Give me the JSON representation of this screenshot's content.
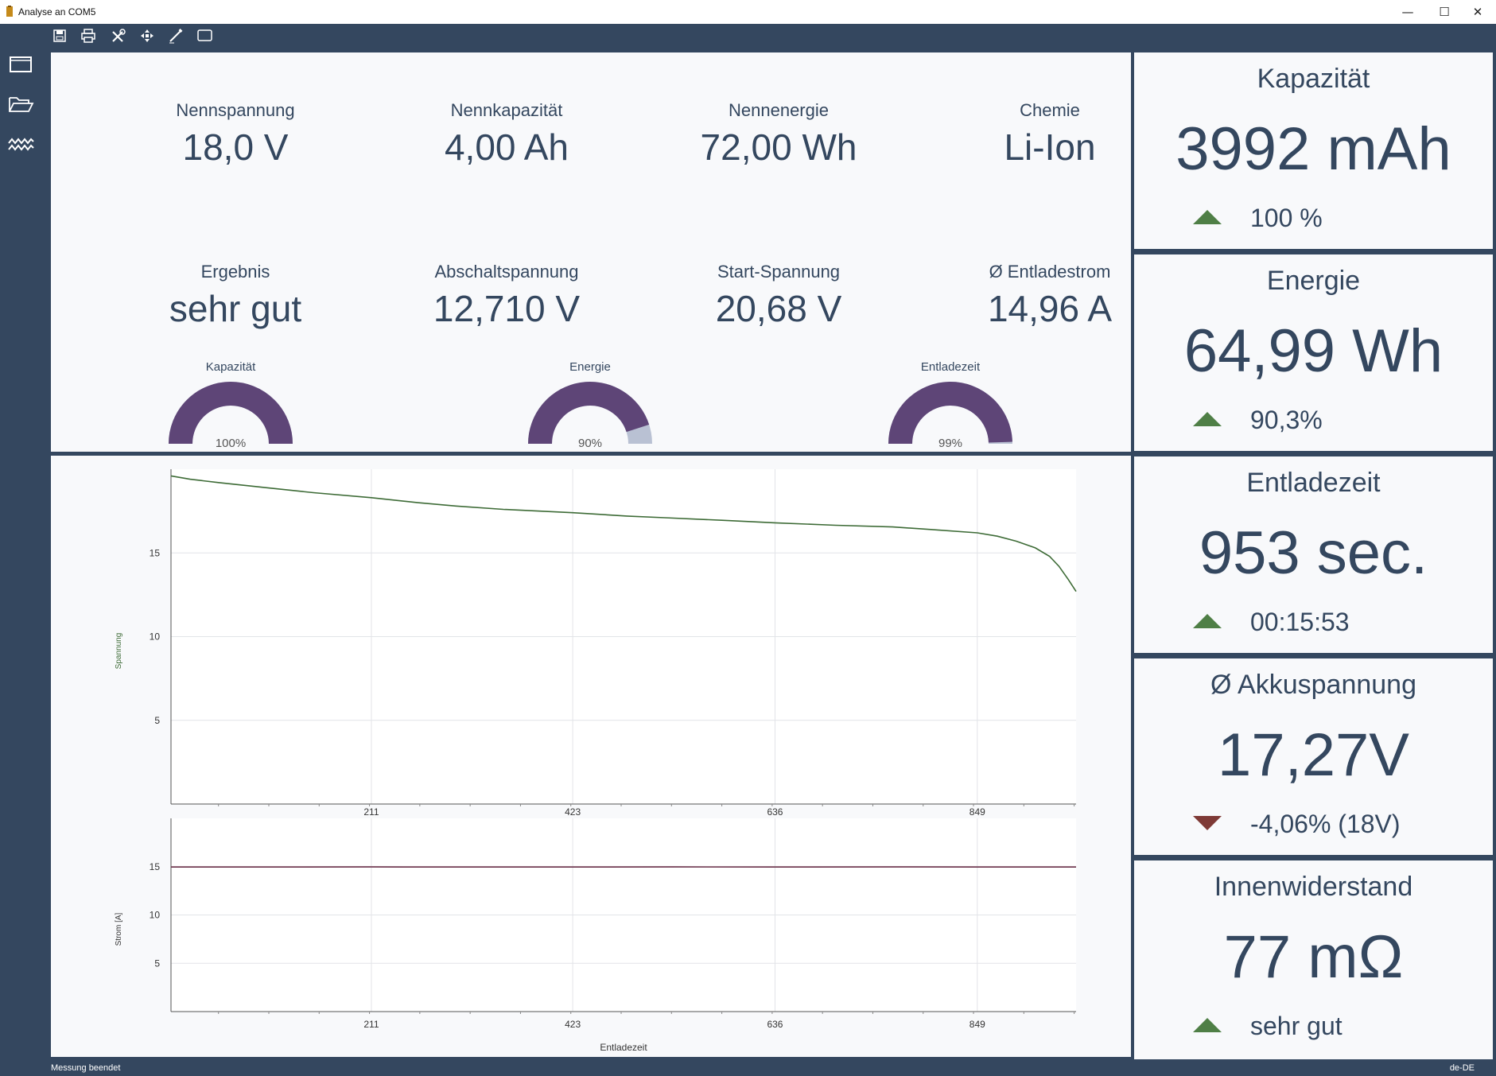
{
  "window": {
    "title": "Analyse an COM5",
    "minimize_glyph": "—",
    "maximize_glyph": "☐",
    "close_glyph": "✕"
  },
  "toolbar": {
    "icons": [
      "save-icon",
      "print-icon",
      "tools-icon",
      "move-icon",
      "pen-icon",
      "frame-icon"
    ]
  },
  "sidebar": {
    "icons": [
      "window-icon",
      "folder-open-icon",
      "waveform-icon"
    ]
  },
  "summary": {
    "nennspannung": {
      "label": "Nennspannung",
      "value": "18,0 V"
    },
    "nennkapazitaet": {
      "label": "Nennkapazität",
      "value": "4,00 Ah"
    },
    "nennenergie": {
      "label": "Nennenergie",
      "value": "72,00 Wh"
    },
    "chemie": {
      "label": "Chemie",
      "value": "Li-Ion"
    },
    "ergebnis": {
      "label": "Ergebnis",
      "value": "sehr gut"
    },
    "abschaltspannung": {
      "label": "Abschaltspannung",
      "value": "12,710 V"
    },
    "startspannung": {
      "label": "Start-Spannung",
      "value": "20,68 V"
    },
    "entladestrom": {
      "label": "Ø Entladestrom",
      "value": "14,96 A"
    }
  },
  "gauges": [
    {
      "label": "Kapazität",
      "percent_text": "100%",
      "fraction": 1.0
    },
    {
      "label": "Energie",
      "percent_text": "90%",
      "fraction": 0.9
    },
    {
      "label": "Entladezeit",
      "percent_text": "99%",
      "fraction": 0.99
    }
  ],
  "cards": [
    {
      "title": "Kapazität",
      "value": "3992 mAh",
      "trend": "up",
      "sub": "100 %"
    },
    {
      "title": "Energie",
      "value": "64,99 Wh",
      "trend": "up",
      "sub": "90,3%"
    },
    {
      "title": "Entladezeit",
      "value": "953 sec.",
      "trend": "up",
      "sub": "00:15:53"
    },
    {
      "title": "Ø Akkuspannung",
      "value": "17,27V",
      "trend": "down",
      "sub": "-4,06%  (18V)"
    },
    {
      "title": "Innenwiderstand",
      "value": "77 mΩ",
      "trend": "up",
      "sub": "sehr gut"
    }
  ],
  "colors": {
    "frame": "#34475f",
    "panel": "#f8f9fb",
    "gauge_fill": "#5e4577",
    "gauge_rest": "#b9c1d3",
    "trend_up": "#4f7f46",
    "trend_down": "#7e3a36",
    "voltage_line": "#3d6b36",
    "current_line": "#6a3049"
  },
  "chart_data": [
    {
      "type": "line",
      "ylabel": "Spannung",
      "xlim": [
        0,
        953
      ],
      "ylim": [
        0,
        20
      ],
      "x_ticks": [
        211,
        423,
        636,
        849
      ],
      "y_ticks": [
        5,
        10,
        15
      ],
      "grid": true,
      "series": [
        {
          "x": [
            0,
            20,
            50,
            100,
            150,
            211,
            260,
            300,
            350,
            423,
            480,
            520,
            580,
            636,
            700,
            760,
            800,
            849,
            870,
            890,
            910,
            925,
            935,
            945,
            953
          ],
          "y": [
            19.6,
            19.4,
            19.2,
            18.9,
            18.6,
            18.3,
            18.0,
            17.8,
            17.6,
            17.4,
            17.2,
            17.1,
            16.95,
            16.8,
            16.65,
            16.55,
            16.4,
            16.2,
            16.0,
            15.7,
            15.3,
            14.8,
            14.2,
            13.4,
            12.7
          ]
        }
      ]
    },
    {
      "type": "line",
      "ylabel": "Strom [A]",
      "xlabel": "Entladezeit",
      "xlim": [
        0,
        953
      ],
      "ylim": [
        0,
        20
      ],
      "x_ticks": [
        211,
        423,
        636,
        849
      ],
      "y_ticks": [
        5,
        10,
        15
      ],
      "grid": true,
      "series": [
        {
          "x": [
            0,
            100,
            211,
            300,
            423,
            530,
            636,
            770,
            849,
            953
          ],
          "y": [
            14.96,
            14.96,
            14.97,
            14.96,
            14.96,
            14.97,
            14.96,
            14.97,
            14.96,
            14.96
          ]
        }
      ]
    }
  ],
  "status": {
    "left": "Messung beendet",
    "right": "de-DE"
  }
}
